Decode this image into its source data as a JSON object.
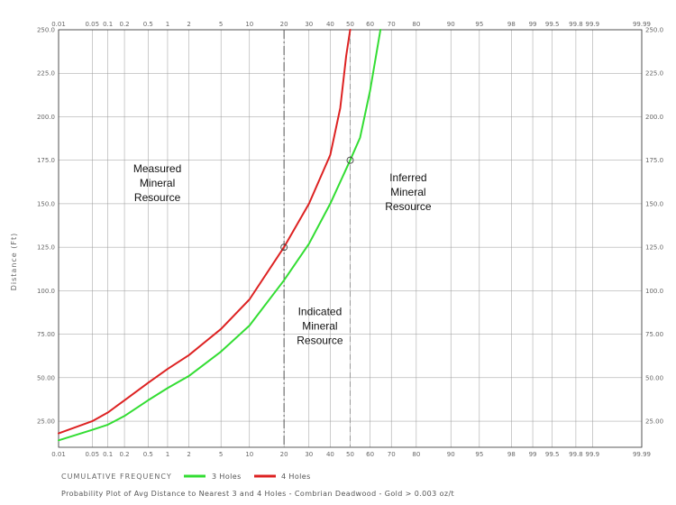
{
  "chart_data": {
    "type": "line",
    "x_scale": "probability",
    "x_ticks": [
      "0.01",
      "0.05",
      "0.1",
      "0.2",
      "0.5",
      "1",
      "2",
      "5",
      "10",
      "20",
      "30",
      "40",
      "50",
      "60",
      "70",
      "80",
      "90",
      "95",
      "98",
      "99",
      "99.5",
      "99.8",
      "99.9",
      "99.99"
    ],
    "y_ticks": [
      "25.00",
      "50.00",
      "75.00",
      "100.0",
      "125.0",
      "150.0",
      "175.0",
      "200.0",
      "225.0",
      "250.0"
    ],
    "ylim": [
      10,
      250
    ],
    "ylabel": "Distance (Ft)",
    "xlabel": "CUMULATIVE FREQUENCY",
    "grid": true,
    "legend_position": "bottom",
    "series": [
      {
        "name": "3 Holes",
        "color": "#33dd33",
        "x": [
          0.01,
          0.05,
          0.1,
          0.2,
          0.5,
          1,
          2,
          5,
          10,
          20,
          30,
          40,
          50,
          55,
          60,
          65
        ],
        "y": [
          14,
          20,
          23,
          28,
          37,
          44,
          51,
          65,
          80,
          106,
          127,
          150,
          175,
          188,
          215,
          250
        ]
      },
      {
        "name": "4 Holes",
        "color": "#dd2222",
        "x": [
          0.01,
          0.05,
          0.1,
          0.2,
          0.5,
          1,
          2,
          5,
          10,
          20,
          30,
          40,
          45,
          48,
          50
        ],
        "y": [
          18,
          25,
          30,
          37,
          47,
          55,
          63,
          78,
          95,
          125,
          150,
          178,
          205,
          235,
          250
        ]
      }
    ],
    "markers": [
      {
        "x": 20,
        "y": 125
      },
      {
        "x": 50,
        "y": 175
      }
    ],
    "vlines": [
      {
        "x": 20,
        "style": "dash-dot",
        "color": "#555555"
      },
      {
        "x": 50,
        "style": "dashed",
        "color": "#999999"
      }
    ],
    "regions": [
      {
        "lines": [
          "Measured",
          "Mineral",
          "Resource"
        ],
        "x": 0.7,
        "y": 168
      },
      {
        "lines": [
          "Inferred",
          "Mineral",
          "Resource"
        ],
        "x": 77,
        "y": 163
      },
      {
        "lines": [
          "Indicated",
          "Mineral",
          "Resource"
        ],
        "x": 35,
        "y": 86
      }
    ],
    "subtitle": "Probability Plot of Avg Distance to Nearest 3 and 4 Holes - Combrian Deadwood - Gold > 0.003 oz/t"
  }
}
